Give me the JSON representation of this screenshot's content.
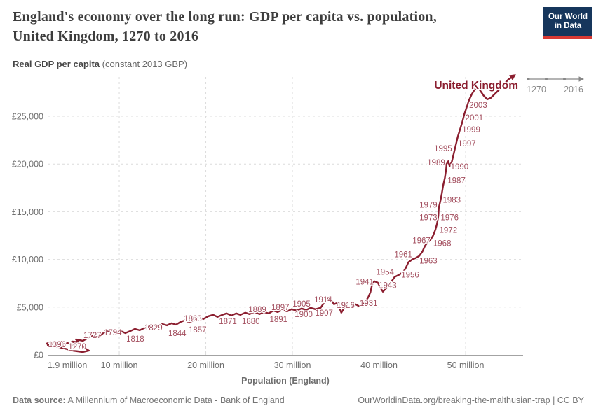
{
  "header": {
    "title_lines": [
      "England's economy over the long run: GDP per capita vs. population,",
      "United Kingdom, 1270 to 2016"
    ],
    "logo": {
      "line1": "Our World",
      "line2": "in Data"
    }
  },
  "subtitle": {
    "bold": "Real GDP per capita",
    "rest": " (constant 2013 GBP)"
  },
  "footer": {
    "source_label": "Data source:",
    "source_text": " A Millennium of Macroeconomic Data - Bank of England",
    "right": "OurWorldinData.org/breaking-the-malthusian-trap | CC BY"
  },
  "colors": {
    "line": "#8b1e2f",
    "year_label": "#a34e5e",
    "grid": "#dcdcdc",
    "axis": "#a3a3a3",
    "tick_text": "#6e6e6e",
    "timeline": "#888888",
    "logo_bg": "#16365c",
    "logo_red": "#d93a34",
    "title": "#3d3d3d"
  },
  "chart_data": {
    "type": "line",
    "title": "England's economy over the long run: GDP per capita vs. population, United Kingdom, 1270 to 2016",
    "xlabel": "Population (England)",
    "ylabel": "Real GDP per capita (constant 2013 GBP)",
    "series_label": "United Kingdom",
    "legend_position": "end-of-line",
    "grid": "dashed",
    "xlim_million": [
      1.9,
      56.6
    ],
    "ylim_gbp": [
      0,
      29500
    ],
    "x_ticks": [
      {
        "value": 1.9,
        "label": "1.9 million",
        "gridline": false
      },
      {
        "value": 10,
        "label": "10 million",
        "gridline": true
      },
      {
        "value": 20,
        "label": "20 million",
        "gridline": true
      },
      {
        "value": 30,
        "label": "30 million",
        "gridline": true
      },
      {
        "value": 40,
        "label": "40 million",
        "gridline": true
      },
      {
        "value": 50,
        "label": "50 million",
        "gridline": true
      }
    ],
    "y_ticks": [
      {
        "value": 0,
        "label": "£0"
      },
      {
        "value": 5000,
        "label": "£5,000"
      },
      {
        "value": 10000,
        "label": "£10,000"
      },
      {
        "value": 15000,
        "label": "£15,000"
      },
      {
        "value": 20000,
        "label": "£20,000"
      },
      {
        "value": 25000,
        "label": "£25,000"
      }
    ],
    "timeline": {
      "start": "1270",
      "end": "2016"
    },
    "points_population_million_vs_gdp_gbp": [
      [
        5.4,
        1030
      ],
      [
        6.1,
        660
      ],
      [
        6.5,
        440
      ],
      [
        5.8,
        295
      ],
      [
        4.65,
        440
      ],
      [
        3.7,
        660
      ],
      [
        2.65,
        880
      ],
      [
        1.75,
        1030
      ],
      [
        2.3,
        1175
      ],
      [
        3.1,
        955
      ],
      [
        2.05,
        1325
      ],
      [
        1.6,
        1175
      ],
      [
        2.55,
        1250
      ],
      [
        3.5,
        1030
      ],
      [
        3.05,
        1400
      ],
      [
        4.0,
        1250
      ],
      [
        4.65,
        1030
      ],
      [
        5.15,
        1175
      ],
      [
        4.55,
        1400
      ],
      [
        5.3,
        1325
      ],
      [
        5.0,
        1620
      ],
      [
        5.8,
        1470
      ],
      [
        6.25,
        1690
      ],
      [
        6.9,
        1985
      ],
      [
        7.5,
        1840
      ],
      [
        8.05,
        2205
      ],
      [
        8.6,
        2500
      ],
      [
        9.2,
        2575
      ],
      [
        9.65,
        2355
      ],
      [
        10.15,
        2500
      ],
      [
        10.7,
        2280
      ],
      [
        11.3,
        2500
      ],
      [
        11.8,
        2720
      ],
      [
        12.35,
        2575
      ],
      [
        12.85,
        2795
      ],
      [
        13.3,
        2940
      ],
      [
        13.9,
        3090
      ],
      [
        14.35,
        2940
      ],
      [
        14.95,
        3235
      ],
      [
        15.5,
        3090
      ],
      [
        16.05,
        3310
      ],
      [
        16.55,
        3160
      ],
      [
        17.1,
        3455
      ],
      [
        17.6,
        3605
      ],
      [
        18.1,
        3380
      ],
      [
        18.65,
        3675
      ],
      [
        19.15,
        3970
      ],
      [
        19.7,
        3750
      ],
      [
        20.3,
        4045
      ],
      [
        20.85,
        4190
      ],
      [
        21.35,
        3970
      ],
      [
        21.9,
        4190
      ],
      [
        22.4,
        4340
      ],
      [
        22.95,
        4120
      ],
      [
        23.5,
        4340
      ],
      [
        24.0,
        4190
      ],
      [
        24.55,
        4410
      ],
      [
        25.05,
        4265
      ],
      [
        25.6,
        4485
      ],
      [
        26.2,
        4265
      ],
      [
        26.7,
        4485
      ],
      [
        27.25,
        4340
      ],
      [
        27.8,
        4630
      ],
      [
        28.3,
        4485
      ],
      [
        28.85,
        4705
      ],
      [
        29.4,
        4560
      ],
      [
        29.9,
        4780
      ],
      [
        30.5,
        4630
      ],
      [
        31.05,
        4855
      ],
      [
        31.6,
        4705
      ],
      [
        32.1,
        4925
      ],
      [
        32.65,
        4780
      ],
      [
        33.25,
        4925
      ],
      [
        33.7,
        5515
      ],
      [
        34.3,
        6030
      ],
      [
        34.8,
        5295
      ],
      [
        35.2,
        5440
      ],
      [
        35.65,
        4410
      ],
      [
        36.15,
        5145
      ],
      [
        36.7,
        4925
      ],
      [
        37.3,
        5295
      ],
      [
        37.75,
        5075
      ],
      [
        38.35,
        5440
      ],
      [
        38.75,
        6030
      ],
      [
        39.0,
        6545
      ],
      [
        39.2,
        7355
      ],
      [
        39.45,
        7720
      ],
      [
        39.85,
        7575
      ],
      [
        40.2,
        6985
      ],
      [
        40.45,
        6620
      ],
      [
        40.85,
        6985
      ],
      [
        41.3,
        7500
      ],
      [
        41.8,
        8160
      ],
      [
        42.3,
        8380
      ],
      [
        42.8,
        8675
      ],
      [
        43.1,
        9120
      ],
      [
        43.4,
        9705
      ],
      [
        43.85,
        10000
      ],
      [
        44.25,
        10150
      ],
      [
        44.65,
        10370
      ],
      [
        45.0,
        10810
      ],
      [
        45.3,
        11400
      ],
      [
        45.6,
        11765
      ],
      [
        45.95,
        12060
      ],
      [
        46.25,
        12500
      ],
      [
        46.5,
        13090
      ],
      [
        46.7,
        13750
      ],
      [
        46.85,
        14560
      ],
      [
        46.9,
        15440
      ],
      [
        47.1,
        16175
      ],
      [
        47.25,
        16910
      ],
      [
        47.4,
        17720
      ],
      [
        47.6,
        18530
      ],
      [
        47.75,
        19410
      ],
      [
        47.8,
        20000
      ],
      [
        48.0,
        20295
      ],
      [
        48.15,
        19780
      ],
      [
        48.4,
        20220
      ],
      [
        48.6,
        20955
      ],
      [
        48.85,
        21910
      ],
      [
        49.1,
        22870
      ],
      [
        49.35,
        23605
      ],
      [
        49.6,
        24340
      ],
      [
        49.85,
        25220
      ],
      [
        50.1,
        25885
      ],
      [
        50.4,
        26690
      ],
      [
        50.7,
        27280
      ],
      [
        51.1,
        27870
      ],
      [
        51.6,
        27795
      ],
      [
        52.1,
        27135
      ],
      [
        52.5,
        26765
      ],
      [
        52.9,
        26910
      ],
      [
        53.4,
        27350
      ],
      [
        53.9,
        27790
      ],
      [
        54.4,
        28300
      ],
      [
        54.9,
        28815
      ],
      [
        55.35,
        29100
      ]
    ],
    "year_annotations": [
      {
        "year": "1396",
        "pop": 2.8,
        "gdp": 1105
      },
      {
        "year": "1270",
        "pop": 5.15,
        "gdp": 880
      },
      {
        "year": "1727",
        "pop": 6.9,
        "gdp": 2060
      },
      {
        "year": "1794",
        "pop": 9.25,
        "gdp": 2355
      },
      {
        "year": "1818",
        "pop": 11.85,
        "gdp": 1690
      },
      {
        "year": "1829",
        "pop": 13.95,
        "gdp": 2870
      },
      {
        "year": "1844",
        "pop": 16.7,
        "gdp": 2280
      },
      {
        "year": "1857",
        "pop": 19.05,
        "gdp": 2645
      },
      {
        "year": "1863",
        "pop": 18.5,
        "gdp": 3825
      },
      {
        "year": "1871",
        "pop": 22.55,
        "gdp": 3530
      },
      {
        "year": "1880",
        "pop": 25.2,
        "gdp": 3530
      },
      {
        "year": "1889",
        "pop": 25.95,
        "gdp": 4780
      },
      {
        "year": "1891",
        "pop": 28.4,
        "gdp": 3750
      },
      {
        "year": "1897",
        "pop": 28.6,
        "gdp": 5000
      },
      {
        "year": "1900",
        "pop": 31.3,
        "gdp": 4265
      },
      {
        "year": "1905",
        "pop": 31.05,
        "gdp": 5370
      },
      {
        "year": "1907",
        "pop": 33.65,
        "gdp": 4410
      },
      {
        "year": "1914",
        "pop": 33.55,
        "gdp": 5810
      },
      {
        "year": "1916",
        "pop": 36.15,
        "gdp": 5220
      },
      {
        "year": "1931",
        "pop": 38.8,
        "gdp": 5440
      },
      {
        "year": "1941",
        "pop": 38.35,
        "gdp": 7650
      },
      {
        "year": "1943",
        "pop": 41.0,
        "gdp": 7280
      },
      {
        "year": "1954",
        "pop": 40.7,
        "gdp": 8675
      },
      {
        "year": "1956",
        "pop": 43.6,
        "gdp": 8380
      },
      {
        "year": "1961",
        "pop": 42.8,
        "gdp": 10515
      },
      {
        "year": "1963",
        "pop": 45.7,
        "gdp": 9855
      },
      {
        "year": "1967",
        "pop": 44.9,
        "gdp": 11985
      },
      {
        "year": "1968",
        "pop": 47.3,
        "gdp": 11690
      },
      {
        "year": "1972",
        "pop": 48.0,
        "gdp": 13090
      },
      {
        "year": "1973",
        "pop": 45.7,
        "gdp": 14410
      },
      {
        "year": "1976",
        "pop": 48.15,
        "gdp": 14410
      },
      {
        "year": "1979",
        "pop": 45.7,
        "gdp": 15735
      },
      {
        "year": "1983",
        "pop": 48.4,
        "gdp": 16250
      },
      {
        "year": "1987",
        "pop": 48.95,
        "gdp": 18310
      },
      {
        "year": "1989",
        "pop": 46.6,
        "gdp": 20145
      },
      {
        "year": "1990",
        "pop": 49.3,
        "gdp": 19705
      },
      {
        "year": "1995",
        "pop": 47.4,
        "gdp": 21615
      },
      {
        "year": "1997",
        "pop": 50.15,
        "gdp": 22130
      },
      {
        "year": "1999",
        "pop": 50.65,
        "gdp": 23605
      },
      {
        "year": "2001",
        "pop": 51.0,
        "gdp": 24855
      },
      {
        "year": "2003",
        "pop": 51.45,
        "gdp": 26175
      }
    ]
  }
}
